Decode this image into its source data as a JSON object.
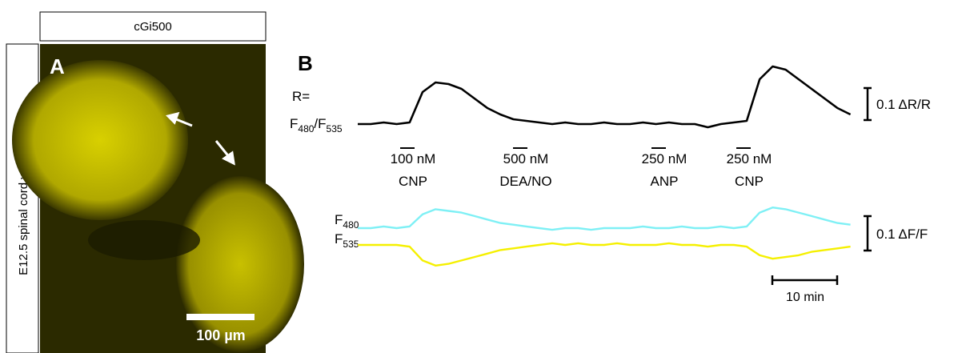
{
  "panel_a": {
    "label": "A",
    "header": "cGi500",
    "side_label": "E12.5 spinal cord with DRGs",
    "scale_bar": "100 µm"
  },
  "panel_b": {
    "label": "B",
    "ratio_label": [
      "R=",
      "F",
      "480",
      "/F",
      "535"
    ],
    "f480_label": [
      "F",
      "480"
    ],
    "f535_label": [
      "F",
      "535"
    ],
    "applications": [
      {
        "conc": "100 nM",
        "agent": "CNP"
      },
      {
        "conc": "500 nM",
        "agent": "DEA/NO"
      },
      {
        "conc": "250 nM",
        "agent": "ANP"
      },
      {
        "conc": "250 nM",
        "agent": "CNP"
      }
    ],
    "ratio_scale": "0.1 ΔR/R",
    "f_scale": "0.1 ΔF/F",
    "time_scale": "10 min",
    "traces": {
      "x": [
        0,
        2,
        4,
        6,
        8,
        10,
        12,
        14,
        16,
        18,
        20,
        22,
        24,
        26,
        28,
        30,
        32,
        34,
        36,
        38,
        40,
        42,
        44,
        46,
        48,
        50,
        52,
        54,
        56,
        58,
        60,
        62,
        64,
        66,
        68,
        70,
        72,
        74,
        76
      ],
      "ratio": {
        "color": "#000000",
        "values": [
          0,
          0,
          0.005,
          0,
          0.005,
          0.1,
          0.13,
          0.125,
          0.11,
          0.08,
          0.05,
          0.03,
          0.015,
          0.01,
          0.005,
          0,
          0.005,
          0,
          0,
          0.005,
          0,
          0,
          0.005,
          0,
          0.005,
          0,
          0,
          -0.01,
          0,
          0.005,
          0.01,
          0.14,
          0.18,
          0.17,
          0.14,
          0.11,
          0.08,
          0.05,
          0.03
        ]
      },
      "f480": {
        "color": "#7ff0f5",
        "values": [
          0,
          0,
          0.005,
          0,
          0.005,
          0.04,
          0.055,
          0.05,
          0.045,
          0.035,
          0.025,
          0.015,
          0.01,
          0.005,
          0,
          -0.005,
          0,
          0,
          -0.005,
          0,
          0,
          0,
          0.005,
          0,
          0,
          0.005,
          0,
          0,
          0.005,
          0,
          0.005,
          0.045,
          0.06,
          0.055,
          0.045,
          0.035,
          0.025,
          0.015,
          0.01
        ]
      },
      "f535": {
        "color": "#f5f000",
        "values": [
          0,
          0,
          0,
          0,
          -0.005,
          -0.045,
          -0.06,
          -0.055,
          -0.045,
          -0.035,
          -0.025,
          -0.015,
          -0.01,
          -0.005,
          0,
          0.005,
          0,
          0.005,
          0,
          0,
          0.005,
          0,
          0,
          0,
          0.005,
          0,
          0,
          -0.005,
          0,
          0,
          -0.005,
          -0.03,
          -0.04,
          -0.035,
          -0.03,
          -0.02,
          -0.015,
          -0.01,
          -0.005
        ]
      }
    }
  }
}
